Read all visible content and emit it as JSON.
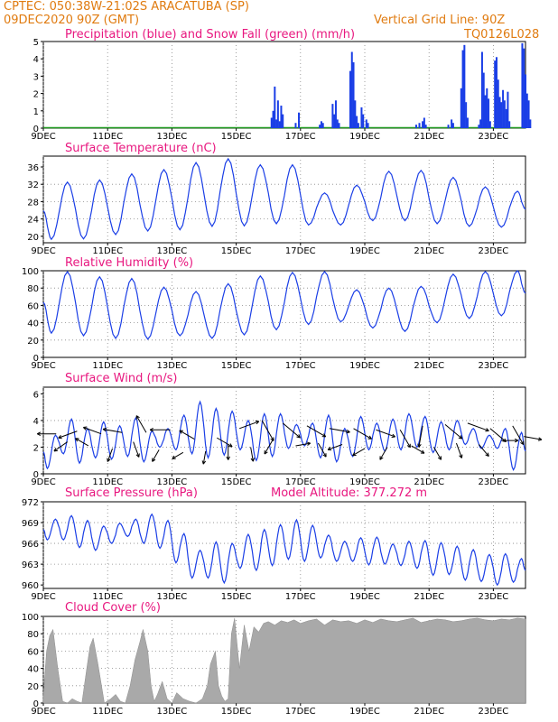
{
  "header": {
    "line1": "CPTEC:   050:38W-21:02S   ARACATUBA (SP)",
    "date": "09DEC2020 90Z (GMT)",
    "grid_note": "Vertical Grid Line: 90Z",
    "code": "TQ0126L028"
  },
  "colors": {
    "header": "#e07b10",
    "title": "#e8177f",
    "series": "#1a3ee6",
    "snow": "#1f9a1f",
    "cloud": "#a9a9a9",
    "wind": "#000000"
  },
  "x_axis": {
    "start_day": 9,
    "end_day": 24,
    "tick_labels": [
      "9DEC",
      "11DEC",
      "13DEC",
      "15DEC",
      "17DEC",
      "19DEC",
      "21DEC",
      "23DEC"
    ],
    "tick_days": [
      9,
      11,
      13,
      15,
      17,
      19,
      21,
      23
    ]
  },
  "chart_data": [
    {
      "type": "bar",
      "title": "Precipitation (blue) and Snow Fall (green) (mm/h)",
      "ylim": [
        0,
        5
      ],
      "yticks": [
        0,
        1,
        2,
        3,
        4,
        5
      ],
      "series": [
        {
          "name": "Precipitation",
          "x_days": [
            16.1,
            16.15,
            16.2,
            16.25,
            16.3,
            16.35,
            16.4,
            16.45,
            16.85,
            16.95,
            17.6,
            17.65,
            17.7,
            18.0,
            18.05,
            18.1,
            18.15,
            18.2,
            18.55,
            18.6,
            18.65,
            18.7,
            18.75,
            18.8,
            18.9,
            18.95,
            19.05,
            19.1,
            20.6,
            20.7,
            20.8,
            20.85,
            20.9,
            21.6,
            21.7,
            21.75,
            22.0,
            22.05,
            22.1,
            22.15,
            22.2,
            22.55,
            22.6,
            22.65,
            22.7,
            22.75,
            22.8,
            22.85,
            22.9,
            23.05,
            23.1,
            23.15,
            23.2,
            23.25,
            23.3,
            23.35,
            23.4,
            23.45,
            23.5,
            23.9,
            23.95,
            24.0,
            24.05,
            24.1,
            24.15
          ],
          "values": [
            0.6,
            1.0,
            2.4,
            0.5,
            1.6,
            0.4,
            1.3,
            0.8,
            0.3,
            0.9,
            0.2,
            0.4,
            0.3,
            1.4,
            0.8,
            1.6,
            0.5,
            0.3,
            3.3,
            4.4,
            3.8,
            1.6,
            0.7,
            0.3,
            1.2,
            0.8,
            0.5,
            0.3,
            0.2,
            0.3,
            0.4,
            0.6,
            0.2,
            0.2,
            0.5,
            0.3,
            2.3,
            4.5,
            4.8,
            1.5,
            0.6,
            0.2,
            0.5,
            4.4,
            3.2,
            1.9,
            2.3,
            1.7,
            0.4,
            3.9,
            4.1,
            2.8,
            1.8,
            1.5,
            2.2,
            1.6,
            1.1,
            2.1,
            0.4,
            4.9,
            4.6,
            3.1,
            2.0,
            1.6,
            0.5
          ]
        },
        {
          "name": "Snow Fall",
          "values": [
            0
          ]
        }
      ]
    },
    {
      "type": "line",
      "title": "Surface Temperature (nC)",
      "ylim": [
        18.5,
        38.5
      ],
      "yticks": [
        20,
        24,
        28,
        32,
        36
      ],
      "series": [
        {
          "name": "Temperature",
          "period_days": 1.0,
          "mins": [
            19.3,
            19.4,
            20.4,
            21.2,
            21.5,
            22.3,
            22.4,
            22.9,
            22.6,
            22.6,
            23.6,
            23.6,
            22.9,
            22.3,
            22.1
          ],
          "maxs": [
            32.5,
            33.0,
            34.4,
            35.4,
            37.0,
            37.9,
            36.5,
            36.5,
            30.0,
            31.8,
            35.0,
            35.2,
            33.6,
            31.4,
            30.4
          ]
        }
      ]
    },
    {
      "type": "line",
      "title": "Relative Humidity (%)",
      "ylim": [
        0,
        100
      ],
      "yticks": [
        0,
        20,
        40,
        60,
        80,
        100
      ],
      "series": [
        {
          "name": "Relative Humidity",
          "period_days": 1.0,
          "mins": [
            28,
            25,
            22,
            21,
            25,
            22,
            26,
            32,
            38,
            41,
            34,
            30,
            40,
            45,
            48
          ],
          "maxs": [
            99,
            93,
            91,
            81,
            76,
            85,
            94,
            98,
            99,
            78,
            80,
            82,
            96,
            99,
            100
          ]
        }
      ]
    },
    {
      "type": "line",
      "title": "Surface Wind (m/s)",
      "ylim": [
        0,
        6.5
      ],
      "yticks": [
        0,
        2,
        4,
        6
      ],
      "series": [
        {
          "name": "Wind speed",
          "period_days": 0.5,
          "mins": [
            0.4,
            1.5,
            0.8,
            1.2,
            1.1,
            1.3,
            0.9,
            2.0,
            1.8,
            1.5,
            1.2,
            1.4,
            1.8,
            1.0,
            1.3,
            1.9,
            2.1,
            1.2,
            0.9,
            1.3,
            1.8,
            1.7,
            1.8,
            2.0,
            1.6,
            1.8,
            2.2,
            1.9,
            1.9,
            0.3
          ],
          "maxs": [
            2.9,
            4.1,
            3.4,
            3.9,
            3.6,
            4.2,
            3.2,
            3.4,
            4.4,
            5.4,
            4.9,
            4.7,
            4.0,
            4.5,
            4.5,
            3.7,
            3.8,
            4.4,
            3.4,
            4.3,
            3.8,
            4.1,
            4.5,
            4.3,
            3.9,
            4.0,
            3.4,
            2.9,
            3.4,
            3.1
          ]
        }
      ],
      "vectors": {
        "x_days": [
          9.4,
          9.75,
          10.05,
          10.4,
          10.8,
          11.15,
          11.45,
          11.8,
          12.2,
          12.6,
          12.95,
          13.35,
          13.7,
          14.05,
          14.4,
          14.75,
          15.1,
          15.45,
          15.8,
          16.15,
          16.45,
          16.85,
          17.2,
          17.55,
          17.9,
          18.3,
          18.65,
          19.0,
          19.35,
          19.7,
          20.1,
          20.45,
          20.8,
          21.15,
          21.5,
          21.85,
          22.2,
          22.55,
          22.9,
          23.25,
          23.6,
          23.95
        ],
        "speeds": [
          3.0,
          2.4,
          3.2,
          2.1,
          3.0,
          1.9,
          3.1,
          2.4,
          3.1,
          1.8,
          3.3,
          1.6,
          2.6,
          1.7,
          2.7,
          2.2,
          3.4,
          2.0,
          4.0,
          2.6,
          3.8,
          2.1,
          3.6,
          2.3,
          3.4,
          2.2,
          3.4,
          1.9,
          3.3,
          2.0,
          3.3,
          2.1,
          3.6,
          2.0,
          3.7,
          2.3,
          3.8,
          2.2,
          3.4,
          2.5,
          3.6,
          2.8
        ],
        "dirs_deg": [
          180,
          215,
          200,
          150,
          160,
          250,
          170,
          290,
          120,
          240,
          180,
          210,
          150,
          260,
          330,
          270,
          20,
          280,
          300,
          240,
          320,
          10,
          330,
          300,
          350,
          200,
          330,
          210,
          340,
          240,
          300,
          330,
          260,
          300,
          320,
          290,
          340,
          310,
          320,
          0,
          300,
          350
        ]
      }
    },
    {
      "type": "line",
      "title": "Surface Pressure (hPa)",
      "subtitle": "Model Altitude: 377.272 m",
      "ylim": [
        959.5,
        972
      ],
      "yticks": [
        960,
        963,
        966,
        969,
        972
      ],
      "series": [
        {
          "name": "Pressure",
          "period_days": 0.5,
          "mins": [
            966.5,
            966.5,
            965.4,
            965.0,
            966.0,
            967.0,
            966.0,
            965.3,
            963.2,
            961.0,
            961.0,
            960.3,
            962.4,
            962.1,
            962.8,
            963.7,
            963.4,
            963.9,
            963.4,
            963.4,
            962.9,
            963.0,
            962.8,
            962.4,
            961.4,
            961.5,
            960.7,
            960.5,
            960.0,
            960.4
          ],
          "maxs": [
            969.5,
            970.0,
            969.3,
            968.5,
            968.9,
            969.5,
            970.2,
            969.3,
            967.4,
            965.0,
            966.2,
            966.0,
            967.3,
            968.0,
            968.7,
            969.4,
            968.6,
            967.2,
            966.3,
            966.8,
            966.9,
            965.9,
            966.3,
            966.4,
            966.1,
            965.6,
            965.1,
            964.4,
            964.5,
            963.8
          ]
        }
      ]
    },
    {
      "type": "area",
      "title": "Cloud Cover (%)",
      "ylim": [
        0,
        100
      ],
      "yticks": [
        0,
        20,
        40,
        60,
        80,
        100
      ],
      "series": [
        {
          "name": "Cloud Cover",
          "x_days": [
            9.0,
            9.1,
            9.2,
            9.3,
            9.45,
            9.6,
            9.75,
            9.9,
            10.05,
            10.2,
            10.35,
            10.45,
            10.55,
            10.7,
            10.9,
            11.1,
            11.25,
            11.4,
            11.55,
            11.7,
            11.85,
            12.0,
            12.1,
            12.25,
            12.35,
            12.45,
            12.55,
            12.7,
            12.85,
            13.0,
            13.15,
            13.35,
            13.55,
            13.75,
            13.95,
            14.1,
            14.2,
            14.35,
            14.45,
            14.55,
            14.65,
            14.75,
            14.85,
            14.95,
            15.1,
            15.25,
            15.4,
            15.55,
            15.7,
            15.85,
            16.0,
            16.2,
            16.4,
            16.6,
            16.8,
            17.0,
            17.25,
            17.5,
            17.75,
            18.0,
            18.25,
            18.5,
            18.75,
            19.0,
            19.25,
            19.5,
            19.75,
            20.0,
            20.25,
            20.5,
            20.75,
            21.0,
            21.25,
            21.5,
            21.75,
            22.0,
            22.25,
            22.5,
            22.75,
            23.0,
            23.25,
            23.5,
            23.75,
            24.0
          ],
          "values": [
            8,
            60,
            78,
            85,
            40,
            2,
            0,
            5,
            2,
            0,
            40,
            65,
            75,
            45,
            0,
            5,
            10,
            2,
            0,
            20,
            50,
            70,
            85,
            60,
            20,
            2,
            10,
            25,
            5,
            0,
            12,
            5,
            2,
            0,
            5,
            20,
            45,
            60,
            20,
            8,
            2,
            5,
            80,
            98,
            40,
            90,
            60,
            88,
            82,
            92,
            94,
            90,
            95,
            93,
            96,
            92,
            95,
            97,
            90,
            96,
            94,
            95,
            92,
            96,
            93,
            97,
            95,
            94,
            96,
            98,
            93,
            95,
            97,
            96,
            94,
            95,
            97,
            98,
            96,
            95,
            97,
            96,
            98,
            97
          ]
        }
      ]
    }
  ]
}
